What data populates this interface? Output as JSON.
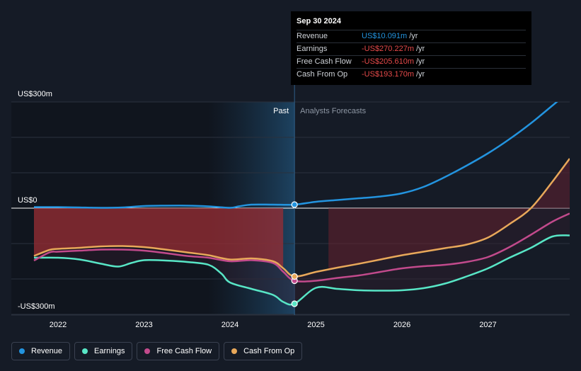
{
  "colors": {
    "background": "#151b26",
    "revenue": "#2394df",
    "earnings": "#58e6c6",
    "free_cash_flow": "#c24a8c",
    "cash_from_op": "#e8a85a",
    "negative_fill": "#b43a3a"
  },
  "tooltip": {
    "date": "Sep 30 2024",
    "rows": [
      {
        "label": "Revenue",
        "value": "US$10.091m",
        "unit": "/yr",
        "color": "#2394df"
      },
      {
        "label": "Earnings",
        "value": "-US$270.227m",
        "unit": "/yr",
        "color": "#e64a4a"
      },
      {
        "label": "Free Cash Flow",
        "value": "-US$205.610m",
        "unit": "/yr",
        "color": "#e64a4a"
      },
      {
        "label": "Cash From Op",
        "value": "-US$193.170m",
        "unit": "/yr",
        "color": "#e64a4a"
      }
    ]
  },
  "legend": [
    {
      "label": "Revenue",
      "color": "#2394df"
    },
    {
      "label": "Earnings",
      "color": "#58e6c6"
    },
    {
      "label": "Free Cash Flow",
      "color": "#c24a8c"
    },
    {
      "label": "Cash From Op",
      "color": "#e8a85a"
    }
  ],
  "chart_data": {
    "type": "line",
    "title": "",
    "xlabel": "",
    "ylabel": "",
    "unit": "US$m",
    "xlim": [
      2021.72,
      2027.95
    ],
    "ylim": [
      -300,
      300
    ],
    "y_tick_labels": [
      {
        "value": 300,
        "label": "US$300m"
      },
      {
        "value": 0,
        "label": "US$0"
      },
      {
        "value": -300,
        "label": "-US$300m"
      }
    ],
    "x_tick_labels": [
      {
        "value": 2022,
        "label": "2022"
      },
      {
        "value": 2023,
        "label": "2023"
      },
      {
        "value": 2024,
        "label": "2024"
      },
      {
        "value": 2025,
        "label": "2025"
      },
      {
        "value": 2026,
        "label": "2026"
      },
      {
        "value": 2027,
        "label": "2027"
      }
    ],
    "past_label": "Past",
    "forecast_label": "Analysts Forecasts",
    "past_end": 2024.75,
    "highlight_start": 2023.75,
    "series": [
      {
        "name": "Revenue",
        "color": "#2394df",
        "x": [
          2021.72,
          2022.0,
          2022.25,
          2022.5,
          2022.75,
          2023.0,
          2023.25,
          2023.5,
          2023.75,
          2024.0,
          2024.1,
          2024.25,
          2024.5,
          2024.75,
          2025.0,
          2025.25,
          2025.5,
          2025.75,
          2026.0,
          2026.25,
          2026.5,
          2026.75,
          2027.0,
          2027.25,
          2027.5,
          2027.75,
          2027.95
        ],
        "y": [
          3,
          3,
          2,
          1,
          2,
          6,
          7,
          7,
          5,
          1,
          5,
          10,
          10,
          10,
          18,
          23,
          28,
          33,
          42,
          60,
          88,
          120,
          155,
          195,
          240,
          290,
          330
        ]
      },
      {
        "name": "Earnings",
        "color": "#58e6c6",
        "x": [
          2021.72,
          2022.0,
          2022.25,
          2022.5,
          2022.7,
          2022.85,
          2023.0,
          2023.25,
          2023.5,
          2023.75,
          2023.9,
          2024.0,
          2024.25,
          2024.5,
          2024.62,
          2024.75,
          2025.0,
          2025.25,
          2025.5,
          2025.75,
          2026.0,
          2026.25,
          2026.5,
          2026.75,
          2027.0,
          2027.25,
          2027.5,
          2027.75,
          2027.95
        ],
        "y": [
          -140,
          -140,
          -145,
          -157,
          -165,
          -155,
          -147,
          -148,
          -152,
          -160,
          -185,
          -210,
          -228,
          -245,
          -265,
          -270,
          -225,
          -228,
          -232,
          -233,
          -232,
          -226,
          -213,
          -193,
          -170,
          -140,
          -112,
          -80,
          -77
        ]
      },
      {
        "name": "Free Cash Flow",
        "color": "#c24a8c",
        "x": [
          2021.72,
          2021.9,
          2022.0,
          2022.25,
          2022.5,
          2022.75,
          2023.0,
          2023.25,
          2023.5,
          2023.75,
          2024.0,
          2024.25,
          2024.5,
          2024.62,
          2024.75,
          2025.0,
          2025.25,
          2025.5,
          2025.75,
          2026.0,
          2026.25,
          2026.5,
          2026.75,
          2027.0,
          2027.25,
          2027.5,
          2027.75,
          2027.95
        ],
        "y": [
          -148,
          -125,
          -123,
          -120,
          -117,
          -117,
          -120,
          -127,
          -135,
          -140,
          -150,
          -147,
          -155,
          -180,
          -205,
          -205,
          -197,
          -190,
          -180,
          -170,
          -164,
          -160,
          -152,
          -138,
          -110,
          -75,
          -38,
          -15
        ]
      },
      {
        "name": "Cash From Op",
        "color": "#e8a85a",
        "x": [
          2021.72,
          2021.9,
          2022.0,
          2022.25,
          2022.5,
          2022.75,
          2023.0,
          2023.25,
          2023.5,
          2023.75,
          2024.0,
          2024.25,
          2024.5,
          2024.62,
          2024.75,
          2025.0,
          2025.25,
          2025.5,
          2025.75,
          2026.0,
          2026.25,
          2026.5,
          2026.75,
          2027.0,
          2027.25,
          2027.5,
          2027.75,
          2027.95
        ],
        "y": [
          -135,
          -118,
          -115,
          -112,
          -108,
          -107,
          -110,
          -117,
          -125,
          -133,
          -145,
          -142,
          -150,
          -170,
          -193,
          -180,
          -168,
          -157,
          -145,
          -133,
          -123,
          -113,
          -103,
          -83,
          -45,
          0,
          75,
          140
        ]
      }
    ],
    "highlight_points": [
      {
        "series": "Revenue",
        "x": 2024.75,
        "y": 10
      },
      {
        "series": "Earnings",
        "x": 2024.75,
        "y": -270
      },
      {
        "series": "Free Cash Flow",
        "x": 2024.75,
        "y": -205
      },
      {
        "series": "Cash From Op",
        "x": 2024.75,
        "y": -193
      }
    ]
  }
}
